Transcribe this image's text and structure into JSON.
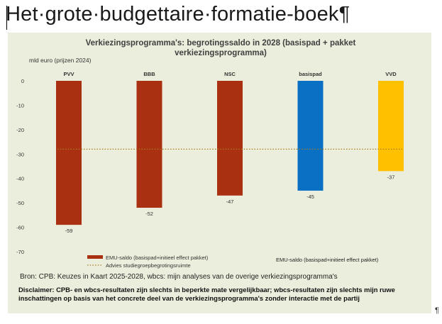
{
  "document": {
    "heading": "Het·grote·budgettaire·formatie-boek¶",
    "end_mark": "¶"
  },
  "chart_data": {
    "type": "bar",
    "title": "Verkiezingsprogramma's: begrotingssaldo in 2028 (basispad + pakket verkiezingsprogramma)",
    "title_line1": "Verkiezingsprogramma's: begrotingssaldo in 2028 (basispad + pakket",
    "title_line2": "verkiezingsprogramma)",
    "ylabel": "mld euro (prijzen 2024)",
    "categories": [
      "PVV",
      "BBB",
      "NSC",
      "basispad",
      "VVD"
    ],
    "values": [
      -59,
      -52,
      -47,
      -45,
      -37
    ],
    "value_labels": [
      "-59",
      "-52",
      "-47",
      "-45",
      "-37"
    ],
    "bar_colors": [
      "#a93010",
      "#a93010",
      "#a93010",
      "#0a70c4",
      "#ffc000"
    ],
    "yticks": [
      0,
      -10,
      -20,
      -30,
      -40,
      -50,
      -60,
      -70
    ],
    "ytick_labels": [
      "0",
      "-10",
      "-20",
      "-30",
      "-40",
      "-50",
      "-60",
      "-70"
    ],
    "ylim": [
      -70,
      0
    ],
    "reference_line": {
      "value": -28,
      "color": "#a67c1e",
      "style": "dotted"
    },
    "grid": false,
    "legend_placement": "bottom",
    "legend": [
      {
        "label": "EMU-saldo (basispad+initieel effect pakket)",
        "color": "#a93010",
        "kind": "bar"
      },
      {
        "label": "Advies studiegroepbegrotingsruimte",
        "color": "#a67c1e",
        "kind": "dotted-line"
      }
    ],
    "annotation": "EMU-saldo (basispad+initieel effect pakket)",
    "background": "#eceedd"
  },
  "source": "Bron: CPB: Keuzes in Kaart 2025-2028, wbcs: mijn analyses van de overige verkiezingsprogramma's",
  "disclaimer": "Disclaimer: CPB- en wbcs-resultaten zijn slechts in beperkte mate vergelijkbaar; wbcs-resultaten zijn slechts mijn ruwe inschattingen op basis van het concrete deel van de verkiezingsprogramma's zonder interactie met de partij"
}
